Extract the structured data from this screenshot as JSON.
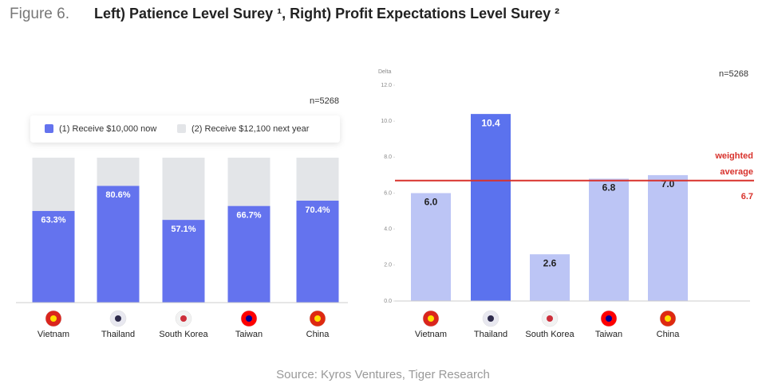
{
  "figure_label": "Figure 6.",
  "title": "Left) Patience Level Surey ¹, Right) Profit Expectations Level Surey ²",
  "source": "Source: Kyros Ventures, Tiger Research",
  "chart_data": [
    {
      "type": "stacked_bar",
      "annotation": "n=5268",
      "categories": [
        "Vietnam",
        "Thailand",
        "South Korea",
        "Taiwan",
        "China"
      ],
      "series": [
        {
          "name": "(1) Receive $10,000 now",
          "color": "#6473ee",
          "values": [
            63.3,
            80.6,
            57.1,
            66.7,
            70.4
          ],
          "value_labels": [
            "63.3%",
            "80.6%",
            "57.1%",
            "66.7%",
            "70.4%"
          ]
        },
        {
          "name": "(2) Receive $12,100 next year",
          "color": "#e3e5e8",
          "values": [
            36.7,
            19.4,
            42.9,
            33.3,
            29.6
          ]
        }
      ],
      "ylim": [
        0,
        100
      ]
    },
    {
      "type": "bar",
      "annotation": "n=5268",
      "y_label": "Delta",
      "categories": [
        "Vietnam",
        "Thailand",
        "South Korea",
        "Taiwan",
        "China"
      ],
      "values": [
        6.0,
        10.4,
        2.6,
        6.8,
        7.0
      ],
      "value_labels": [
        "6.0",
        "10.4",
        "2.6",
        "6.8",
        "7.0"
      ],
      "colors": [
        "#bcc5f5",
        "#5b72ee",
        "#bcc5f5",
        "#bcc5f5",
        "#bcc5f5"
      ],
      "ylim": [
        0,
        12
      ],
      "yticks": [
        {
          "value": 0,
          "label": "0.0"
        },
        {
          "value": 2,
          "label": "2.0"
        },
        {
          "value": 4,
          "label": "4.0"
        },
        {
          "value": 6,
          "label": "6.0"
        },
        {
          "value": 8,
          "label": "8.0"
        },
        {
          "value": 10,
          "label": "10.0"
        },
        {
          "value": 12,
          "label": "12.0"
        }
      ],
      "reference_line": {
        "value": 6.7,
        "label_lines": [
          "weighted",
          "average"
        ],
        "color": "#d8322c"
      }
    }
  ]
}
